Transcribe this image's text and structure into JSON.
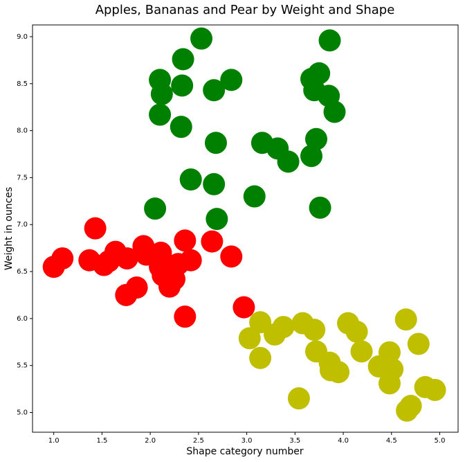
{
  "chart_data": {
    "type": "scatter",
    "title": "Apples, Bananas and Pear by Weight and Shape",
    "x_label": "Shape category number",
    "y_label": "Weight in ounces",
    "xlim": [
      0.78,
      5.19
    ],
    "ylim": [
      4.79,
      9.125
    ],
    "xticks": [
      {
        "value": 1,
        "label": "1.0"
      },
      {
        "value": 1.5,
        "label": "1.5"
      },
      {
        "value": 2,
        "label": "2.0"
      },
      {
        "value": 2.5,
        "label": "2.5"
      },
      {
        "value": 3,
        "label": "3.0"
      },
      {
        "value": 3.5,
        "label": "3.5"
      },
      {
        "value": 4,
        "label": "4.0"
      },
      {
        "value": 4.5,
        "label": "4.5"
      },
      {
        "value": 5,
        "label": "5.0"
      }
    ],
    "yticks": [
      {
        "value": 5,
        "label": "5.0"
      },
      {
        "value": 5.5,
        "label": "5.5"
      },
      {
        "value": 6,
        "label": "6.0"
      },
      {
        "value": 6.5,
        "label": "6.5"
      },
      {
        "value": 7,
        "label": "7.0"
      },
      {
        "value": 7.5,
        "label": "7.5"
      },
      {
        "value": 8,
        "label": "8.0"
      },
      {
        "value": 8.5,
        "label": "8.5"
      },
      {
        "value": 9,
        "label": "9.0"
      }
    ],
    "series": [
      {
        "color": "#008000",
        "x": [
          2.53,
          3.86,
          2.34,
          3.75,
          2.1,
          2.33,
          2.84,
          3.67,
          2.66,
          2.12,
          3.7,
          3.85,
          3.91,
          2.1,
          2.32,
          3.72,
          2.68,
          3.16,
          3.32,
          3.43,
          3.67,
          2.42,
          2.66,
          2.05,
          3.08,
          3.76,
          2.69
        ],
        "values": [
          8.98,
          8.96,
          8.76,
          8.61,
          8.54,
          8.48,
          8.54,
          8.55,
          8.43,
          8.39,
          8.43,
          8.37,
          8.2,
          8.17,
          8.04,
          7.91,
          7.87,
          7.87,
          7.81,
          7.67,
          7.73,
          7.48,
          7.43,
          7.17,
          7.3,
          7.18,
          7.06
        ]
      },
      {
        "color": "#ff0000",
        "x": [
          1.43,
          1.0,
          1.09,
          1.37,
          1.52,
          1.57,
          1.64,
          1.76,
          1.93,
          1.96,
          2.11,
          2.1,
          2.13,
          2.18,
          2.29,
          2.36,
          2.42,
          2.64,
          2.84,
          2.25,
          2.2,
          1.86,
          1.75,
          2.36,
          2.97,
          2.16
        ],
        "values": [
          6.96,
          6.55,
          6.64,
          6.62,
          6.57,
          6.61,
          6.71,
          6.64,
          6.77,
          6.68,
          6.7,
          6.55,
          6.46,
          6.54,
          6.58,
          6.83,
          6.62,
          6.82,
          6.66,
          6.42,
          6.34,
          6.33,
          6.25,
          6.02,
          6.12,
          6.44
        ]
      },
      {
        "color": "#bfbf00",
        "x": [
          3.14,
          3.58,
          3.7,
          3.38,
          3.29,
          3.03,
          4.05,
          4.14,
          4.65,
          4.78,
          3.72,
          4.19,
          4.48,
          3.14,
          3.86,
          4.37,
          4.51,
          3.87,
          3.95,
          4.48,
          3.54,
          4.85,
          4.95,
          4.7,
          4.66
        ],
        "values": [
          5.96,
          5.95,
          5.88,
          5.91,
          5.83,
          5.79,
          5.95,
          5.86,
          5.99,
          5.73,
          5.65,
          5.65,
          5.64,
          5.58,
          5.53,
          5.49,
          5.46,
          5.45,
          5.43,
          5.31,
          5.15,
          5.27,
          5.24,
          5.07,
          5.02
        ]
      }
    ]
  }
}
